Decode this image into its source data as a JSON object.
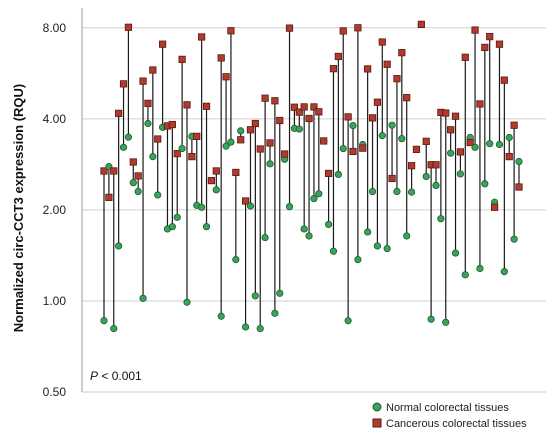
{
  "chart_data": {
    "type": "scatter",
    "title": "",
    "xlabel": "",
    "ylabel": "Normalized circ-CCT3 expression (RQU)",
    "y_scale": "log2",
    "ylim": [
      0.5,
      9.3
    ],
    "y_ticks": [
      0.5,
      1.0,
      2.0,
      4.0,
      8.0
    ],
    "y_tick_labels": [
      "0.50",
      "1.00",
      "2.00",
      "4.00",
      "8.00"
    ],
    "grid": "horizontal",
    "legend_position": "bottom-right",
    "annotation": {
      "italic": "P",
      "rest": " < 0.001"
    },
    "series": [
      {
        "name": "Normal colorectal tissues",
        "color": "#3aa35a"
      },
      {
        "name": "Cancerous colorectal tissues",
        "color": "#b03a2e"
      }
    ],
    "pairs": [
      [
        0.86,
        2.69
      ],
      [
        2.78,
        2.2
      ],
      [
        0.81,
        2.69
      ],
      [
        1.52,
        4.17
      ],
      [
        3.22,
        5.22
      ],
      [
        3.48,
        8.03
      ],
      [
        2.46,
        2.88
      ],
      [
        2.3,
        2.59
      ],
      [
        1.02,
        5.33
      ],
      [
        3.86,
        4.5
      ],
      [
        3.0,
        5.8
      ],
      [
        2.24,
        3.43
      ],
      [
        3.75,
        7.06
      ],
      [
        1.73,
        3.79
      ],
      [
        1.76,
        3.83
      ],
      [
        1.89,
        3.07
      ],
      [
        3.19,
        6.29
      ],
      [
        0.99,
        4.45
      ],
      [
        3.5,
        3.0
      ],
      [
        2.07,
        3.5
      ],
      [
        2.04,
        7.46
      ],
      [
        1.76,
        4.4
      ],
      [
        2.5,
        2.5
      ],
      [
        2.33,
        2.69
      ],
      [
        0.89,
        6.36
      ],
      [
        3.25,
        5.51
      ],
      [
        3.35,
        7.82
      ],
      [
        1.37,
        2.66
      ],
      [
        3.65,
        3.41
      ],
      [
        0.82,
        2.14
      ],
      [
        2.06,
        3.68
      ],
      [
        1.04,
        3.86
      ],
      [
        0.81,
        3.18
      ],
      [
        1.62,
        4.68
      ],
      [
        2.84,
        3.33
      ],
      [
        0.91,
        4.59
      ],
      [
        1.06,
        3.95
      ],
      [
        2.94,
        3.06
      ],
      [
        2.05,
        7.98
      ],
      [
        3.72,
        4.37
      ],
      [
        3.7,
        4.21
      ],
      [
        1.73,
        4.38
      ],
      [
        1.64,
        4.01
      ],
      [
        2.18,
        4.38
      ],
      [
        2.26,
        4.22
      ],
      [
        3.38,
        3.38
      ],
      [
        1.79,
        2.64
      ],
      [
        1.46,
        5.86
      ],
      [
        2.62,
        6.43
      ],
      [
        3.19,
        7.81
      ],
      [
        0.86,
        4.06
      ],
      [
        3.8,
        3.12
      ],
      [
        1.37,
        8.0
      ],
      [
        3.29,
        3.2
      ],
      [
        1.69,
        5.85
      ],
      [
        2.3,
        4.03
      ],
      [
        1.52,
        4.54
      ],
      [
        3.52,
        7.18
      ],
      [
        1.49,
        6.06
      ],
      [
        3.81,
        2.54
      ],
      [
        2.3,
        5.43
      ],
      [
        3.44,
        6.62
      ],
      [
        1.64,
        4.7
      ],
      [
        2.29,
        2.8
      ],
      [
        3.17,
        3.17
      ],
      [
        8.21,
        8.21
      ],
      [
        2.58,
        3.37
      ],
      [
        0.87,
        2.82
      ],
      [
        2.41,
        2.82
      ],
      [
        1.87,
        4.2
      ],
      [
        0.85,
        4.18
      ],
      [
        3.08,
        3.68
      ],
      [
        1.44,
        4.08
      ],
      [
        2.63,
        3.11
      ],
      [
        1.22,
        6.39
      ],
      [
        3.47,
        3.34
      ],
      [
        3.22,
        7.86
      ],
      [
        1.28,
        4.48
      ],
      [
        2.44,
        6.89
      ],
      [
        3.31,
        7.48
      ],
      [
        2.12,
        2.04
      ],
      [
        3.29,
        7.06
      ],
      [
        1.25,
        5.37
      ],
      [
        3.47,
        3.0
      ],
      [
        1.6,
        3.81
      ],
      [
        2.89,
        2.38
      ]
    ]
  },
  "legend": {
    "items": [
      {
        "label": "Normal colorectal tissues"
      },
      {
        "label": "Cancerous colorectal tissues"
      }
    ]
  }
}
